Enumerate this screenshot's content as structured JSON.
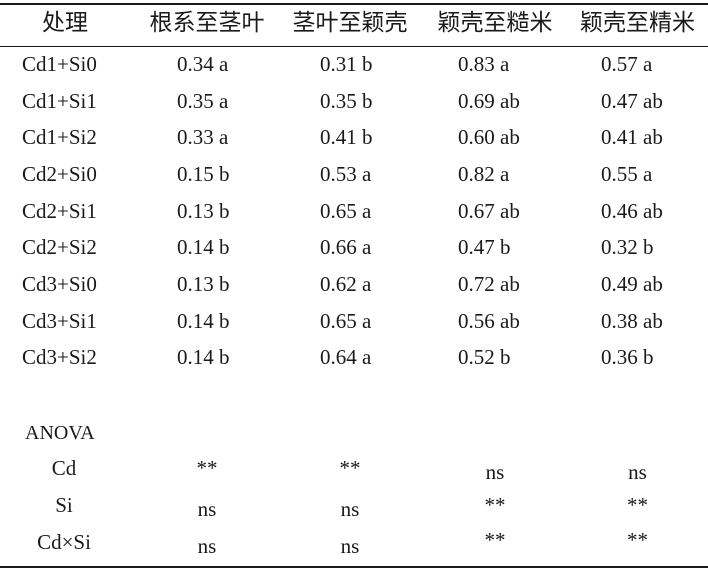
{
  "table": {
    "headers": [
      "处理",
      "根系至茎叶",
      "茎叶至颖壳",
      "颖壳至糙米",
      "颖壳至精米"
    ],
    "rows": [
      {
        "treatment": "Cd1+Si0",
        "root_to_shoot": "0.34 a",
        "shoot_to_husk": "0.31 b",
        "husk_to_brown_rice": "0.83 a",
        "husk_to_polished_rice": "0.57 a"
      },
      {
        "treatment": "Cd1+Si1",
        "root_to_shoot": "0.35 a",
        "shoot_to_husk": "0.35 b",
        "husk_to_brown_rice": "0.69 ab",
        "husk_to_polished_rice": "0.47 ab"
      },
      {
        "treatment": "Cd1+Si2",
        "root_to_shoot": "0.33 a",
        "shoot_to_husk": "0.41 b",
        "husk_to_brown_rice": "0.60 ab",
        "husk_to_polished_rice": "0.41 ab"
      },
      {
        "treatment": "Cd2+Si0",
        "root_to_shoot": "0.15 b",
        "shoot_to_husk": "0.53 a",
        "husk_to_brown_rice": "0.82 a",
        "husk_to_polished_rice": "0.55 a"
      },
      {
        "treatment": "Cd2+Si1",
        "root_to_shoot": "0.13 b",
        "shoot_to_husk": "0.65 a",
        "husk_to_brown_rice": "0.67 ab",
        "husk_to_polished_rice": "0.46 ab"
      },
      {
        "treatment": "Cd2+Si2",
        "root_to_shoot": "0.14 b",
        "shoot_to_husk": "0.66 a",
        "husk_to_brown_rice": "0.47 b",
        "husk_to_polished_rice": "0.32 b"
      },
      {
        "treatment": "Cd3+Si0",
        "root_to_shoot": "0.13 b",
        "shoot_to_husk": "0.62 a",
        "husk_to_brown_rice": "0.72 ab",
        "husk_to_polished_rice": "0.49 ab"
      },
      {
        "treatment": "Cd3+Si1",
        "root_to_shoot": "0.14 b",
        "shoot_to_husk": "0.65 a",
        "husk_to_brown_rice": "0.56 ab",
        "husk_to_polished_rice": "0.38 ab"
      },
      {
        "treatment": "Cd3+Si2",
        "root_to_shoot": "0.14 b",
        "shoot_to_husk": "0.64 a",
        "husk_to_brown_rice": "0.52 b",
        "husk_to_polished_rice": "0.36 b"
      }
    ]
  },
  "anova": {
    "title": "ANOVA",
    "rows": [
      {
        "factor": "Cd",
        "values": [
          "**",
          "**",
          "ns",
          "ns"
        ]
      },
      {
        "factor": "Si",
        "values": [
          "ns",
          "ns",
          "**",
          "**"
        ]
      },
      {
        "factor": "Cd×Si",
        "values": [
          "ns",
          "ns",
          "**",
          "**"
        ]
      }
    ]
  }
}
